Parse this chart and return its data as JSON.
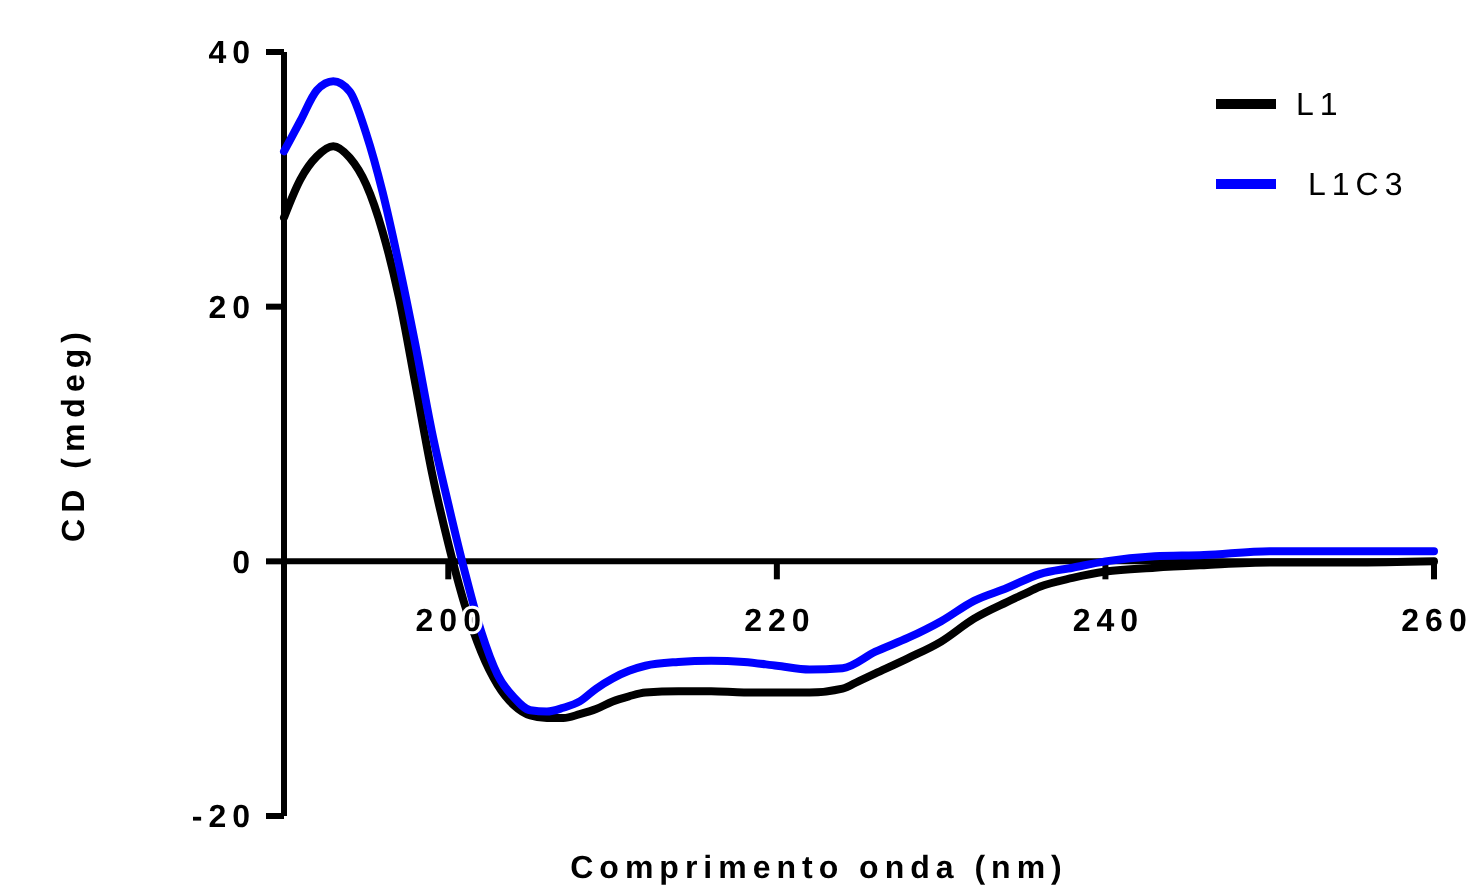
{
  "chart_data": {
    "type": "line",
    "xlabel": "Comprimento onda (nm)",
    "ylabel": "CD (mdeg)",
    "xlim": [
      190,
      260
    ],
    "ylim": [
      -20,
      40
    ],
    "xticks": [
      200,
      220,
      240,
      260
    ],
    "yticks": [
      -20,
      0,
      20,
      40
    ],
    "grid": false,
    "legend": "top right",
    "marker": "none",
    "line_style": "solid",
    "series": [
      {
        "name": "L1",
        "color": "#000000",
        "x": [
          190,
          191,
          192,
          193,
          194,
          195,
          196,
          197,
          198,
          199,
          200,
          201,
          202,
          203,
          204,
          205,
          206,
          207,
          208,
          209,
          210,
          211,
          212,
          214,
          216,
          218,
          220,
          222,
          224,
          225,
          226,
          228,
          230,
          232,
          234,
          235,
          236,
          238,
          240,
          243,
          246,
          250,
          255,
          260
        ],
        "values": [
          27,
          30,
          31.8,
          32.6,
          31.7,
          29.6,
          25.9,
          20.7,
          13.9,
          7,
          1.4,
          -3.4,
          -7.1,
          -9.7,
          -11.3,
          -12.1,
          -12.3,
          -12.3,
          -12,
          -11.6,
          -11,
          -10.6,
          -10.3,
          -10.2,
          -10.2,
          -10.3,
          -10.3,
          -10.3,
          -10,
          -9.4,
          -8.8,
          -7.6,
          -6.3,
          -4.5,
          -3.2,
          -2.6,
          -2,
          -1.3,
          -0.8,
          -0.5,
          -0.3,
          -0.1,
          -0.1,
          0
        ]
      },
      {
        "name": "L1C3",
        "color": "#0000ff",
        "x": [
          190,
          191,
          192,
          193,
          194,
          195,
          196,
          197,
          198,
          199,
          200,
          201,
          202,
          203,
          204,
          205,
          206,
          207,
          208,
          209,
          210,
          211,
          212,
          214,
          216,
          218,
          220,
          222,
          224,
          226,
          228,
          230,
          232,
          234,
          236,
          238,
          240,
          243,
          246,
          250,
          255,
          260
        ],
        "values": [
          32.2,
          34.6,
          37,
          37.7,
          36.9,
          33.6,
          29,
          23.3,
          17,
          10.2,
          4.5,
          -0.8,
          -5.5,
          -8.9,
          -10.7,
          -11.7,
          -11.8,
          -11.5,
          -11,
          -10,
          -9.2,
          -8.6,
          -8.2,
          -7.9,
          -7.8,
          -7.9,
          -8.2,
          -8.5,
          -8.4,
          -7.1,
          -6,
          -4.7,
          -3.1,
          -2.1,
          -1,
          -0.5,
          0,
          0.4,
          0.5,
          0.8,
          0.8,
          0.8
        ]
      }
    ]
  }
}
